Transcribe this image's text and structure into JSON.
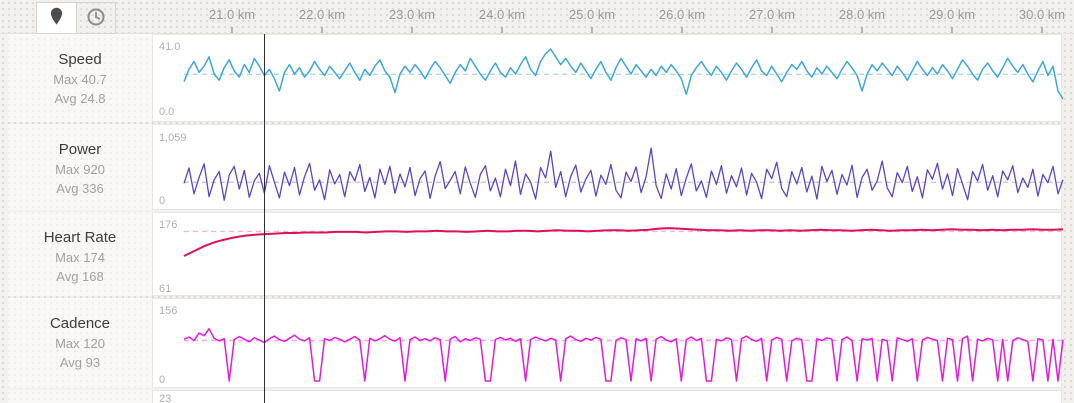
{
  "header": {
    "map_button": {
      "icon": "map-pin-icon",
      "selected": true
    },
    "time_button": {
      "icon": "clock-icon",
      "selected": false
    }
  },
  "xaxis": {
    "unit": "km",
    "labels": [
      "21.0 km",
      "22.0 km",
      "23.0 km",
      "24.0 km",
      "25.0 km",
      "26.0 km",
      "27.0 km",
      "28.0 km",
      "29.0 km",
      "30.0 km"
    ]
  },
  "cursor": {
    "color": "#2e2e2e"
  },
  "partial_panel": {
    "y_top_label": "23"
  },
  "chart_data": [
    {
      "id": "speed",
      "type": "line",
      "title": "Speed",
      "max_label": "Max 40.7",
      "avg_label": "Avg 24.8",
      "y_top_label": "41.0",
      "y_bottom_label": "0.0",
      "ymin": 0,
      "ymax": 41,
      "avg": 24.8,
      "color": "#3ea6dd",
      "avg_color": "#a9d9f2",
      "values": [
        20,
        28,
        33,
        26,
        30,
        36,
        25,
        21,
        29,
        34,
        27,
        23,
        31,
        26,
        35,
        30,
        24,
        28,
        22,
        14,
        26,
        31,
        25,
        29,
        23,
        27,
        33,
        28,
        24,
        30,
        26,
        22,
        27,
        32,
        26,
        21,
        28,
        24,
        30,
        34,
        27,
        23,
        13,
        25,
        30,
        26,
        31,
        27,
        22,
        28,
        33,
        29,
        24,
        19,
        26,
        31,
        27,
        35,
        30,
        25,
        21,
        27,
        32,
        26,
        23,
        29,
        25,
        31,
        36,
        28,
        24,
        33,
        38,
        41,
        36,
        31,
        35,
        30,
        26,
        32,
        27,
        22,
        28,
        33,
        26,
        21,
        29,
        35,
        30,
        25,
        31,
        27,
        23,
        28,
        24,
        30,
        26,
        31,
        27,
        22,
        12,
        24,
        29,
        33,
        28,
        24,
        30,
        26,
        21,
        27,
        32,
        28,
        23,
        29,
        34,
        27,
        24,
        30,
        25,
        20,
        26,
        31,
        28,
        33,
        27,
        23,
        29,
        25,
        30,
        26,
        22,
        28,
        33,
        29,
        24,
        14,
        25,
        31,
        27,
        32,
        28,
        24,
        30,
        26,
        21,
        27,
        33,
        28,
        24,
        29,
        25,
        31,
        27,
        22,
        28,
        34,
        30,
        25,
        21,
        28,
        32,
        27,
        23,
        29,
        35,
        30,
        26,
        31,
        25,
        20,
        27,
        33,
        24,
        30,
        14,
        9
      ]
    },
    {
      "id": "power",
      "type": "line",
      "title": "Power",
      "max_label": "Max 920",
      "avg_label": "Avg 336",
      "y_top_label": "1,059",
      "y_bottom_label": "0",
      "ymin": 0,
      "ymax": 1059,
      "avg": 336,
      "color": "#5c44c7",
      "avg_color": "#cbc2ee",
      "values": [
        320,
        580,
        140,
        420,
        650,
        90,
        380,
        520,
        30,
        460,
        610,
        220,
        540,
        80,
        360,
        490,
        150,
        620,
        340,
        70,
        510,
        280,
        590,
        120,
        430,
        660,
        200,
        380,
        40,
        550,
        310,
        470,
        90,
        520,
        360,
        640,
        180,
        420,
        70,
        560,
        300,
        610,
        150,
        480,
        260,
        590,
        110,
        400,
        530,
        60,
        440,
        690,
        230,
        370,
        520,
        140,
        600,
        320,
        80,
        470,
        620,
        190,
        410,
        90,
        560,
        280,
        700,
        130,
        480,
        340,
        50,
        590,
        410,
        870,
        250,
        520,
        90,
        440,
        630,
        170,
        390,
        540,
        100,
        460,
        300,
        640,
        200,
        70,
        510,
        350,
        600,
        160,
        430,
        920,
        280,
        60,
        480,
        220,
        570,
        110,
        410,
        650,
        190,
        360,
        80,
        530,
        300,
        620,
        150,
        450,
        260,
        580,
        120,
        490,
        340,
        60,
        560,
        400,
        680,
        230,
        90,
        520,
        310,
        590,
        170,
        440,
        50,
        610,
        350,
        540,
        130,
        470,
        290,
        630,
        80,
        420,
        560,
        200,
        360,
        700,
        240,
        90,
        500,
        330,
        610,
        180,
        430,
        70,
        550,
        390,
        660,
        220,
        480,
        110,
        570,
        310,
        40,
        520,
        360,
        640,
        200,
        450,
        90,
        530,
        380,
        620,
        160,
        410,
        250,
        560,
        100,
        470,
        330,
        610,
        140,
        380
      ]
    },
    {
      "id": "heart_rate",
      "type": "line",
      "title": "Heart Rate",
      "max_label": "Max 174",
      "avg_label": "Avg 168",
      "y_top_label": "176",
      "y_bottom_label": "61",
      "ymin": 61,
      "ymax": 176,
      "avg": 168,
      "color": "#dc1254",
      "avg_color": "#f5b7cd",
      "values": [
        123,
        132,
        141,
        148,
        153,
        157,
        160,
        162,
        163,
        164,
        165,
        165,
        166,
        166,
        166,
        167,
        167,
        167,
        166,
        167,
        168,
        168,
        167,
        168,
        168,
        169,
        168,
        168,
        167,
        168,
        169,
        168,
        168,
        169,
        169,
        168,
        169,
        170,
        169,
        169,
        168,
        169,
        170,
        170,
        169,
        170,
        171,
        173,
        174,
        173,
        172,
        171,
        170,
        170,
        169,
        170,
        169,
        170,
        170,
        169,
        170,
        169,
        170,
        171,
        170,
        170,
        169,
        170,
        171,
        170,
        169,
        170,
        170,
        171,
        170,
        171,
        172,
        171,
        171,
        170,
        171,
        170,
        171,
        171,
        172,
        171,
        171,
        172
      ]
    },
    {
      "id": "cadence",
      "type": "line",
      "title": "Cadence",
      "max_label": "Max 120",
      "avg_label": "Avg 93",
      "y_top_label": "156",
      "y_bottom_label": "0",
      "ymin": 0,
      "ymax": 156,
      "avg": 93,
      "color": "#e51ada",
      "avg_color": "#f6aaee",
      "values": [
        96,
        101,
        93,
        110,
        104,
        120,
        98,
        92,
        97,
        0,
        95,
        102,
        96,
        90,
        99,
        94,
        88,
        97,
        103,
        95,
        91,
        98,
        105,
        96,
        92,
        99,
        0,
        0,
        97,
        93,
        100,
        96,
        90,
        96,
        102,
        94,
        0,
        98,
        92,
        97,
        104,
        96,
        91,
        99,
        0,
        95,
        101,
        93,
        97,
        92,
        99,
        95,
        0,
        96,
        102,
        90,
        97,
        93,
        99,
        96,
        0,
        0,
        95,
        100,
        94,
        98,
        91,
        97,
        0,
        95,
        101,
        96,
        92,
        98,
        94,
        0,
        97,
        103,
        95,
        91,
        98,
        94,
        100,
        96,
        0,
        0,
        93,
        99,
        95,
        0,
        97,
        92,
        98,
        0,
        96,
        102,
        94,
        90,
        97,
        0,
        95,
        101,
        93,
        98,
        0,
        0,
        96,
        92,
        99,
        95,
        0,
        97,
        103,
        95,
        91,
        98,
        0,
        94,
        100,
        96,
        0,
        92,
        98,
        95,
        0,
        0,
        97,
        93,
        99,
        96,
        0,
        95,
        101,
        93,
        0,
        97,
        94,
        98,
        0,
        96,
        92,
        0,
        99,
        95,
        91,
        97,
        0,
        94,
        100,
        96,
        93,
        0,
        98,
        95,
        0,
        97,
        103,
        0,
        96,
        92,
        98,
        94,
        0,
        96,
        0,
        93,
        99,
        95,
        91,
        0,
        97,
        94,
        0,
        96,
        0,
        95
      ]
    }
  ]
}
